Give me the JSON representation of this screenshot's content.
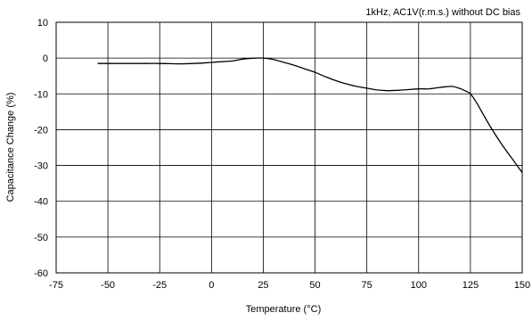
{
  "chart_data": {
    "type": "line",
    "title": "",
    "annotation": "1kHz, AC1V(r.m.s.) without DC bias",
    "xlabel": "Temperature (°C)",
    "ylabel": "Capacitance Change (%)",
    "xlim": [
      -75,
      150
    ],
    "ylim": [
      -60,
      10
    ],
    "xticks": [
      -75,
      -50,
      -25,
      0,
      25,
      50,
      75,
      100,
      125,
      150
    ],
    "yticks": [
      10,
      0,
      -10,
      -20,
      -30,
      -40,
      -50,
      -60
    ],
    "grid": true,
    "series": [
      {
        "x": [
          -55,
          -45,
          -35,
          -25,
          -15,
          -5,
          0,
          5,
          10,
          15,
          20,
          25,
          30,
          35,
          40,
          45,
          50,
          55,
          60,
          65,
          70,
          75,
          80,
          85,
          90,
          95,
          100,
          105,
          110,
          113,
          116,
          119,
          122,
          125,
          128,
          131,
          135,
          140,
          145,
          150
        ],
        "y": [
          -1.5,
          -1.5,
          -1.5,
          -1.5,
          -1.6,
          -1.4,
          -1.2,
          -1.0,
          -0.8,
          -0.3,
          -0.05,
          0,
          -0.4,
          -1.2,
          -2.0,
          -3.0,
          -4.0,
          -5.2,
          -6.3,
          -7.2,
          -7.9,
          -8.4,
          -8.9,
          -9.1,
          -9.0,
          -8.8,
          -8.6,
          -8.6,
          -8.2,
          -8.0,
          -7.9,
          -8.3,
          -9.0,
          -10.0,
          -12.5,
          -15.5,
          -19.5,
          -24.0,
          -28.0,
          -32.0
        ],
        "color": "#000000"
      }
    ]
  }
}
